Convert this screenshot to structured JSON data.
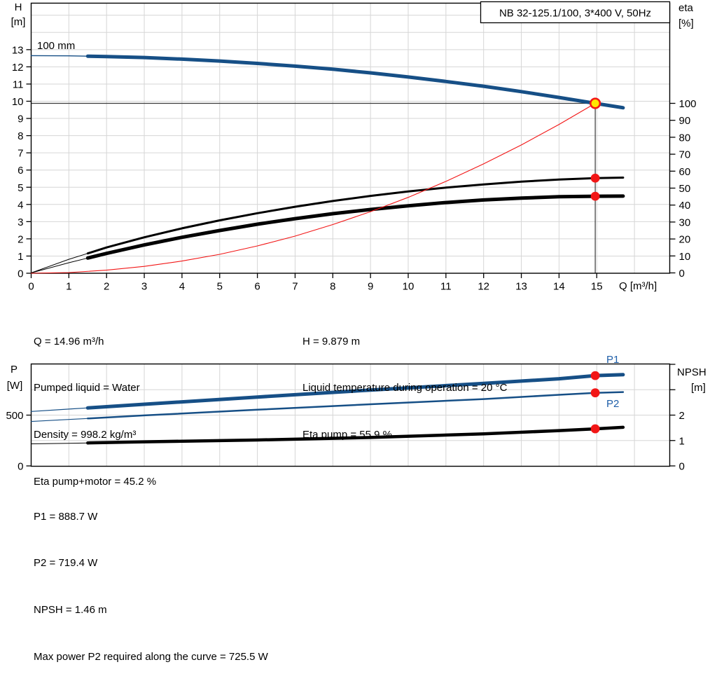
{
  "colors": {
    "curve_blue": "#164f86",
    "label_blue": "#1f5fa9",
    "red": "#f21616",
    "op_fill": "#ffe600",
    "black": "#000000",
    "grid": "#d6d6d6",
    "marker": "#3a3a3a",
    "axis": "#000000"
  },
  "chart_data": [
    {
      "id": "head-chart",
      "type": "line",
      "title": "NB 32-125.1/100, 3*400 V, 50Hz",
      "x_label": "Q [m³/h]",
      "x_ticks": [
        0,
        1,
        2,
        3,
        4,
        5,
        6,
        7,
        8,
        9,
        10,
        11,
        12,
        13,
        14,
        15
      ],
      "x_range": [
        0,
        16.9
      ],
      "grid": true,
      "left_axis": {
        "label": "H",
        "unit": "[m]",
        "ticks": [
          0,
          1,
          2,
          3,
          4,
          5,
          6,
          7,
          8,
          9,
          10,
          11,
          12,
          13
        ],
        "range": [
          0,
          15.7
        ]
      },
      "right_axis": {
        "label": "eta",
        "unit": "[%]",
        "ticks": [
          0,
          10,
          20,
          30,
          40,
          50,
          60,
          70,
          80,
          90,
          100
        ],
        "range": [
          0,
          100
        ]
      },
      "duty_point": {
        "q": 14.96,
        "h": 9.879
      },
      "dots": [
        {
          "q": 14.96,
          "v": 55.9,
          "axis": "right",
          "meaning": "eta pump at duty point [%]"
        },
        {
          "q": 14.96,
          "v": 45.2,
          "axis": "right",
          "meaning": "eta pump+motor at duty point [%]"
        }
      ],
      "series": [
        {
          "name": "pump-curve",
          "label": "100 mm",
          "axis": "left",
          "color_key": "curve_blue",
          "width": 5,
          "thin_width": 1.4,
          "thick_from": 1.5,
          "points": [
            [
              0,
              12.65
            ],
            [
              1,
              12.64
            ],
            [
              2,
              12.6
            ],
            [
              3,
              12.54
            ],
            [
              4,
              12.45
            ],
            [
              5,
              12.34
            ],
            [
              6,
              12.2
            ],
            [
              7,
              12.04
            ],
            [
              8,
              11.86
            ],
            [
              9,
              11.65
            ],
            [
              10,
              11.41
            ],
            [
              11,
              11.15
            ],
            [
              12,
              10.87
            ],
            [
              13,
              10.56
            ],
            [
              14,
              10.22
            ],
            [
              14.96,
              9.879
            ],
            [
              15.7,
              9.62
            ]
          ]
        },
        {
          "name": "eta-pump-curve",
          "axis": "right",
          "color_key": "black",
          "width": 3,
          "thin_width": 1,
          "thick_from": 1.5,
          "points": [
            [
              0,
              0
            ],
            [
              1,
              8
            ],
            [
              2,
              15
            ],
            [
              3,
              21
            ],
            [
              4,
              26.3
            ],
            [
              5,
              31
            ],
            [
              6,
              35.2
            ],
            [
              7,
              39
            ],
            [
              8,
              42.4
            ],
            [
              9,
              45.4
            ],
            [
              10,
              48
            ],
            [
              11,
              50.3
            ],
            [
              12,
              52.2
            ],
            [
              13,
              53.8
            ],
            [
              14,
              55.1
            ],
            [
              14.96,
              55.9
            ],
            [
              15.7,
              56.2
            ]
          ]
        },
        {
          "name": "eta-pump-motor-curve",
          "axis": "right",
          "color_key": "black",
          "width": 5,
          "thin_width": 1,
          "thick_from": 1.5,
          "points": [
            [
              0,
              0
            ],
            [
              1,
              6
            ],
            [
              2,
              11.5
            ],
            [
              3,
              16.5
            ],
            [
              4,
              21
            ],
            [
              5,
              25
            ],
            [
              6,
              28.7
            ],
            [
              7,
              32
            ],
            [
              8,
              34.9
            ],
            [
              9,
              37.4
            ],
            [
              10,
              39.6
            ],
            [
              11,
              41.5
            ],
            [
              12,
              43
            ],
            [
              13,
              44.1
            ],
            [
              14,
              44.9
            ],
            [
              14.96,
              45.2
            ],
            [
              15.7,
              45.3
            ]
          ]
        },
        {
          "name": "system-curve",
          "axis": "left",
          "color_key": "red",
          "width": 1.1,
          "thin_width": 1.1,
          "thick_from": 99,
          "points": [
            [
              0,
              0
            ],
            [
              1,
              0.04
            ],
            [
              2,
              0.18
            ],
            [
              3,
              0.4
            ],
            [
              4,
              0.71
            ],
            [
              5,
              1.1
            ],
            [
              6,
              1.59
            ],
            [
              7,
              2.16
            ],
            [
              8,
              2.83
            ],
            [
              9,
              3.58
            ],
            [
              10,
              4.41
            ],
            [
              11,
              5.34
            ],
            [
              12,
              6.36
            ],
            [
              13,
              7.46
            ],
            [
              14,
              8.65
            ],
            [
              14.96,
              9.879
            ]
          ]
        }
      ]
    },
    {
      "id": "power-chart",
      "type": "line",
      "x_range": [
        0,
        16.9
      ],
      "grid": true,
      "left_axis": {
        "label": "P",
        "unit": "[W]",
        "ticks": [
          0,
          500
        ],
        "range": [
          0,
          1000
        ]
      },
      "right_axis": {
        "label": "NPSH",
        "unit": "[m]",
        "ticks": [
          0,
          1,
          2
        ],
        "unlabeled_ticks": [
          3,
          4
        ],
        "range": [
          0,
          4
        ]
      },
      "dots": [
        {
          "q": 14.96,
          "v": 888.7,
          "axis": "left",
          "meaning": "P1 at duty point [W]"
        },
        {
          "q": 14.96,
          "v": 719.4,
          "axis": "left",
          "meaning": "P2 at duty point [W]"
        },
        {
          "q": 14.96,
          "v": 1.46,
          "axis": "right",
          "meaning": "NPSH at duty point [m]"
        }
      ],
      "series": [
        {
          "name": "p1-curve",
          "label": "P1",
          "axis": "left",
          "color_key": "curve_blue",
          "width": 5,
          "thin_width": 1.2,
          "thick_from": 1.5,
          "points": [
            [
              0,
              536
            ],
            [
              1,
              559
            ],
            [
              3,
              607
            ],
            [
              6,
              678
            ],
            [
              9,
              747
            ],
            [
              12,
              812
            ],
            [
              14,
              858
            ],
            [
              14.96,
              888.7
            ],
            [
              15.7,
              898
            ]
          ]
        },
        {
          "name": "p2-curve",
          "label": "P2",
          "axis": "left",
          "color_key": "curve_blue",
          "width": 2.5,
          "thin_width": 1.1,
          "thick_from": 1.5,
          "points": [
            [
              0,
              437
            ],
            [
              1,
              457
            ],
            [
              3,
              497
            ],
            [
              6,
              553
            ],
            [
              9,
              607
            ],
            [
              12,
              658
            ],
            [
              14,
              700
            ],
            [
              14.96,
              719.4
            ],
            [
              15.7,
              727
            ]
          ]
        },
        {
          "name": "npsh-curve",
          "axis": "right",
          "color_key": "black",
          "width": 4.5,
          "thin_width": 1,
          "thick_from": 1.5,
          "points": [
            [
              0,
              0.87
            ],
            [
              1,
              0.89
            ],
            [
              3,
              0.95
            ],
            [
              6,
              1.02
            ],
            [
              9,
              1.12
            ],
            [
              12,
              1.26
            ],
            [
              14,
              1.39
            ],
            [
              14.96,
              1.46
            ],
            [
              15.7,
              1.52
            ]
          ]
        }
      ]
    }
  ],
  "info_top": {
    "left": [
      "Q = 14.96 m³/h",
      "Pumped liquid = Water",
      "Density = 998.2 kg/m³",
      "Eta pump+motor = 45.2 %"
    ],
    "right": [
      "H = 9.879 m",
      "Liquid temperature during operation = 20 °C",
      "Eta pump = 55.9 %"
    ]
  },
  "info_bottom": [
    "P1 = 888.7 W",
    "P2 = 719.4 W",
    "NPSH = 1.46 m",
    "Max power P2 required along the curve = 725.5 W"
  ]
}
